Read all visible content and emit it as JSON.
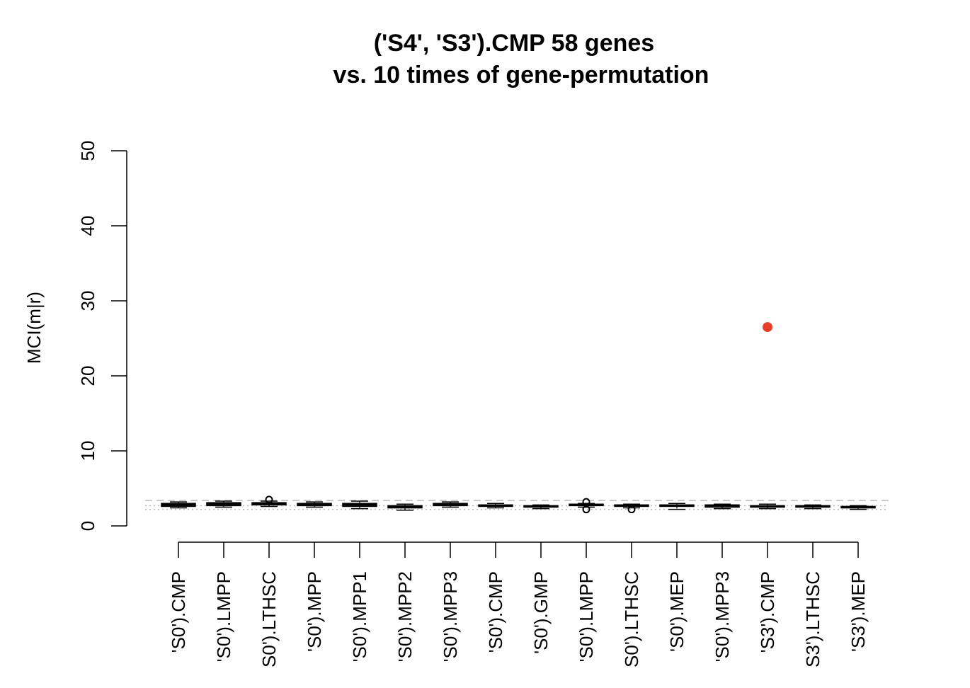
{
  "chart_data": {
    "type": "boxplot",
    "title": "('S4', 'S3').CMP 58 genes",
    "subtitle": "vs.  10 times of gene-permutation",
    "ylabel": "MCI(m|r)",
    "xlabel": "",
    "ylim": [
      0,
      50
    ],
    "yticks": [
      0,
      10,
      20,
      30,
      40,
      50
    ],
    "grid": false,
    "legend": "none",
    "categories": [
      "'S0').CMP",
      "'S0').LMPP",
      "S0').LTHSC",
      "'S0').MPP",
      "'S0').MPP1",
      "'S0').MPP2",
      "'S0').MPP3",
      "'S0').CMP",
      "'S0').GMP",
      "'S0').LMPP",
      "S0').LTHSC",
      "'S0').MEP",
      "'S0').MPP3",
      "'S3').CMP",
      "S3').LTHSC",
      "'S3').MEP"
    ],
    "boxes": [
      {
        "min": 2.4,
        "q1": 2.6,
        "median": 2.8,
        "q3": 3.0,
        "max": 3.2,
        "outliers": []
      },
      {
        "min": 2.5,
        "q1": 2.7,
        "median": 2.9,
        "q3": 3.1,
        "max": 3.3,
        "outliers": []
      },
      {
        "min": 2.6,
        "q1": 2.8,
        "median": 3.0,
        "q3": 3.1,
        "max": 3.3,
        "outliers": [
          3.5
        ]
      },
      {
        "min": 2.5,
        "q1": 2.7,
        "median": 2.9,
        "q3": 3.0,
        "max": 3.2,
        "outliers": []
      },
      {
        "min": 2.3,
        "q1": 2.6,
        "median": 2.8,
        "q3": 3.0,
        "max": 3.3,
        "outliers": []
      },
      {
        "min": 2.1,
        "q1": 2.4,
        "median": 2.6,
        "q3": 2.7,
        "max": 2.9,
        "outliers": []
      },
      {
        "min": 2.5,
        "q1": 2.7,
        "median": 2.9,
        "q3": 3.0,
        "max": 3.2,
        "outliers": []
      },
      {
        "min": 2.4,
        "q1": 2.6,
        "median": 2.7,
        "q3": 2.8,
        "max": 3.0,
        "outliers": []
      },
      {
        "min": 2.3,
        "q1": 2.5,
        "median": 2.6,
        "q3": 2.7,
        "max": 2.8,
        "outliers": []
      },
      {
        "min": 2.5,
        "q1": 2.7,
        "median": 2.8,
        "q3": 2.9,
        "max": 3.0,
        "outliers": [
          2.2,
          3.2
        ]
      },
      {
        "min": 2.4,
        "q1": 2.6,
        "median": 2.7,
        "q3": 2.8,
        "max": 2.9,
        "outliers": [
          2.2
        ]
      },
      {
        "min": 2.2,
        "q1": 2.6,
        "median": 2.7,
        "q3": 2.8,
        "max": 3.0,
        "outliers": []
      },
      {
        "min": 2.3,
        "q1": 2.5,
        "median": 2.7,
        "q3": 2.8,
        "max": 2.9,
        "outliers": []
      },
      {
        "min": 2.3,
        "q1": 2.5,
        "median": 2.6,
        "q3": 2.7,
        "max": 2.9,
        "outliers": []
      },
      {
        "min": 2.3,
        "q1": 2.5,
        "median": 2.6,
        "q3": 2.7,
        "max": 2.8,
        "outliers": []
      },
      {
        "min": 2.2,
        "q1": 2.4,
        "median": 2.5,
        "q3": 2.6,
        "max": 2.7,
        "outliers": []
      }
    ],
    "highlight_point": {
      "category_index": 13,
      "value": 26.5,
      "color": "#e8402a"
    },
    "reference_lines": [
      {
        "value": 3.4,
        "style": "dashed",
        "color": "#bbbbbb"
      },
      {
        "value": 2.7,
        "style": "dotted",
        "color": "#bbbbbb"
      },
      {
        "value": 2.2,
        "style": "dotted",
        "color": "#bbbbbb"
      }
    ]
  }
}
